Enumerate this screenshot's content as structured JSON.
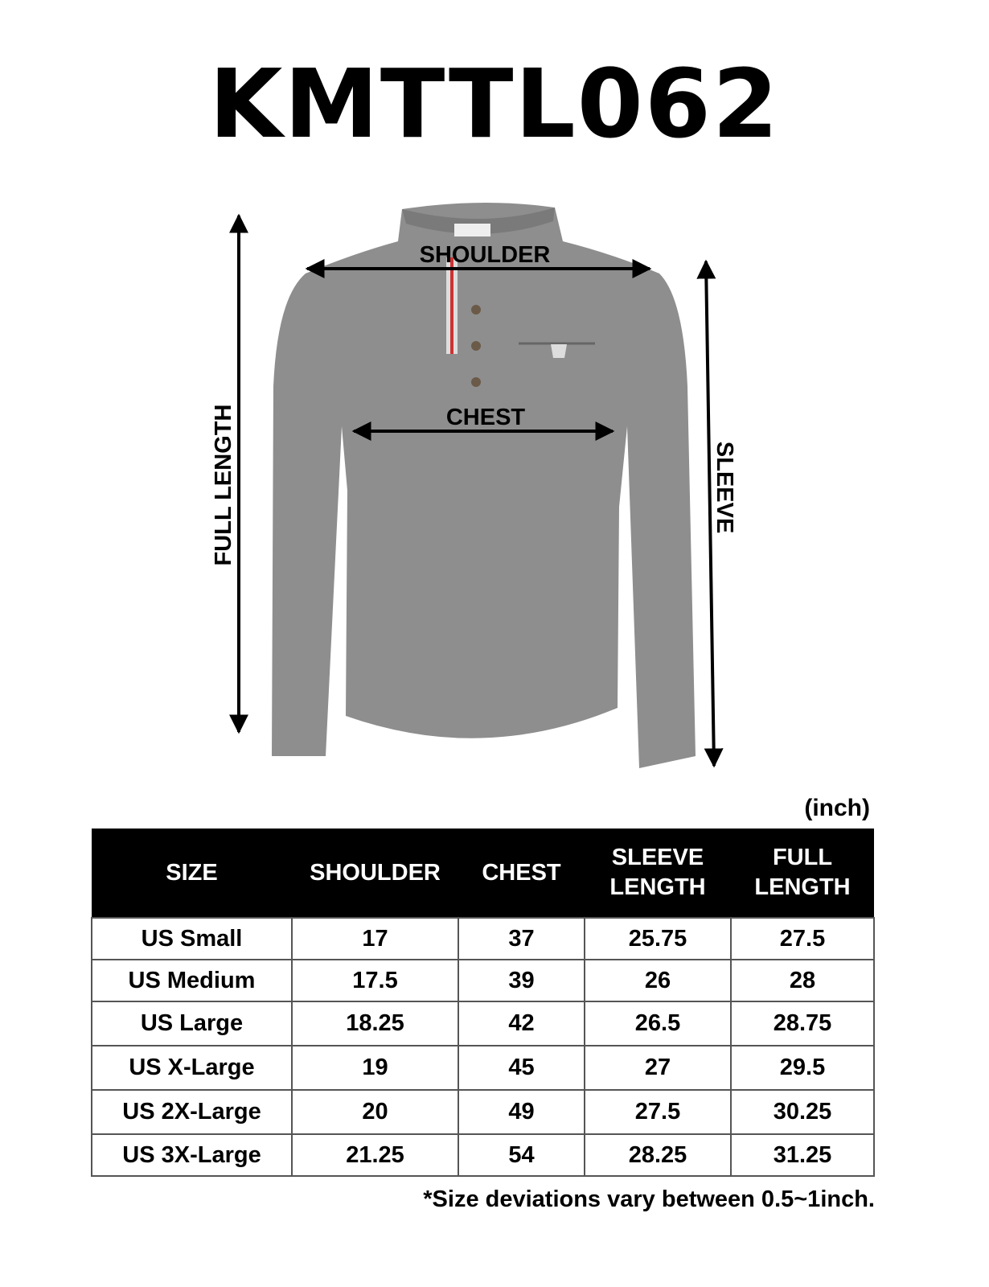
{
  "title": "KMTTL062",
  "figure": {
    "labels": {
      "shoulder": "SHOULDER",
      "chest": "CHEST",
      "full_length": "FULL LENGTH",
      "sleeve": "SLEEVE"
    },
    "garment_color": "#8c8c8c"
  },
  "unit": "(inch)",
  "table": {
    "headers": [
      "SIZE",
      "SHOULDER",
      "CHEST",
      "SLEEVE LENGTH",
      "FULL LENGTH"
    ],
    "header_lines": [
      [
        "SIZE"
      ],
      [
        "SHOULDER"
      ],
      [
        "CHEST"
      ],
      [
        "SLEEVE",
        "LENGTH"
      ],
      [
        "FULL",
        "LENGTH"
      ]
    ],
    "rows": [
      [
        "US Small",
        "17",
        "37",
        "25.75",
        "27.5"
      ],
      [
        "US Medium",
        "17.5",
        "39",
        "26",
        "28"
      ],
      [
        "US Large",
        "18.25",
        "42",
        "26.5",
        "28.75"
      ],
      [
        "US X-Large",
        "19",
        "45",
        "27",
        "29.5"
      ],
      [
        "US 2X-Large",
        "20",
        "49",
        "27.5",
        "30.25"
      ],
      [
        "US 3X-Large",
        "21.25",
        "54",
        "28.25",
        "31.25"
      ]
    ]
  },
  "footnote": "*Size deviations vary between 0.5~1inch."
}
